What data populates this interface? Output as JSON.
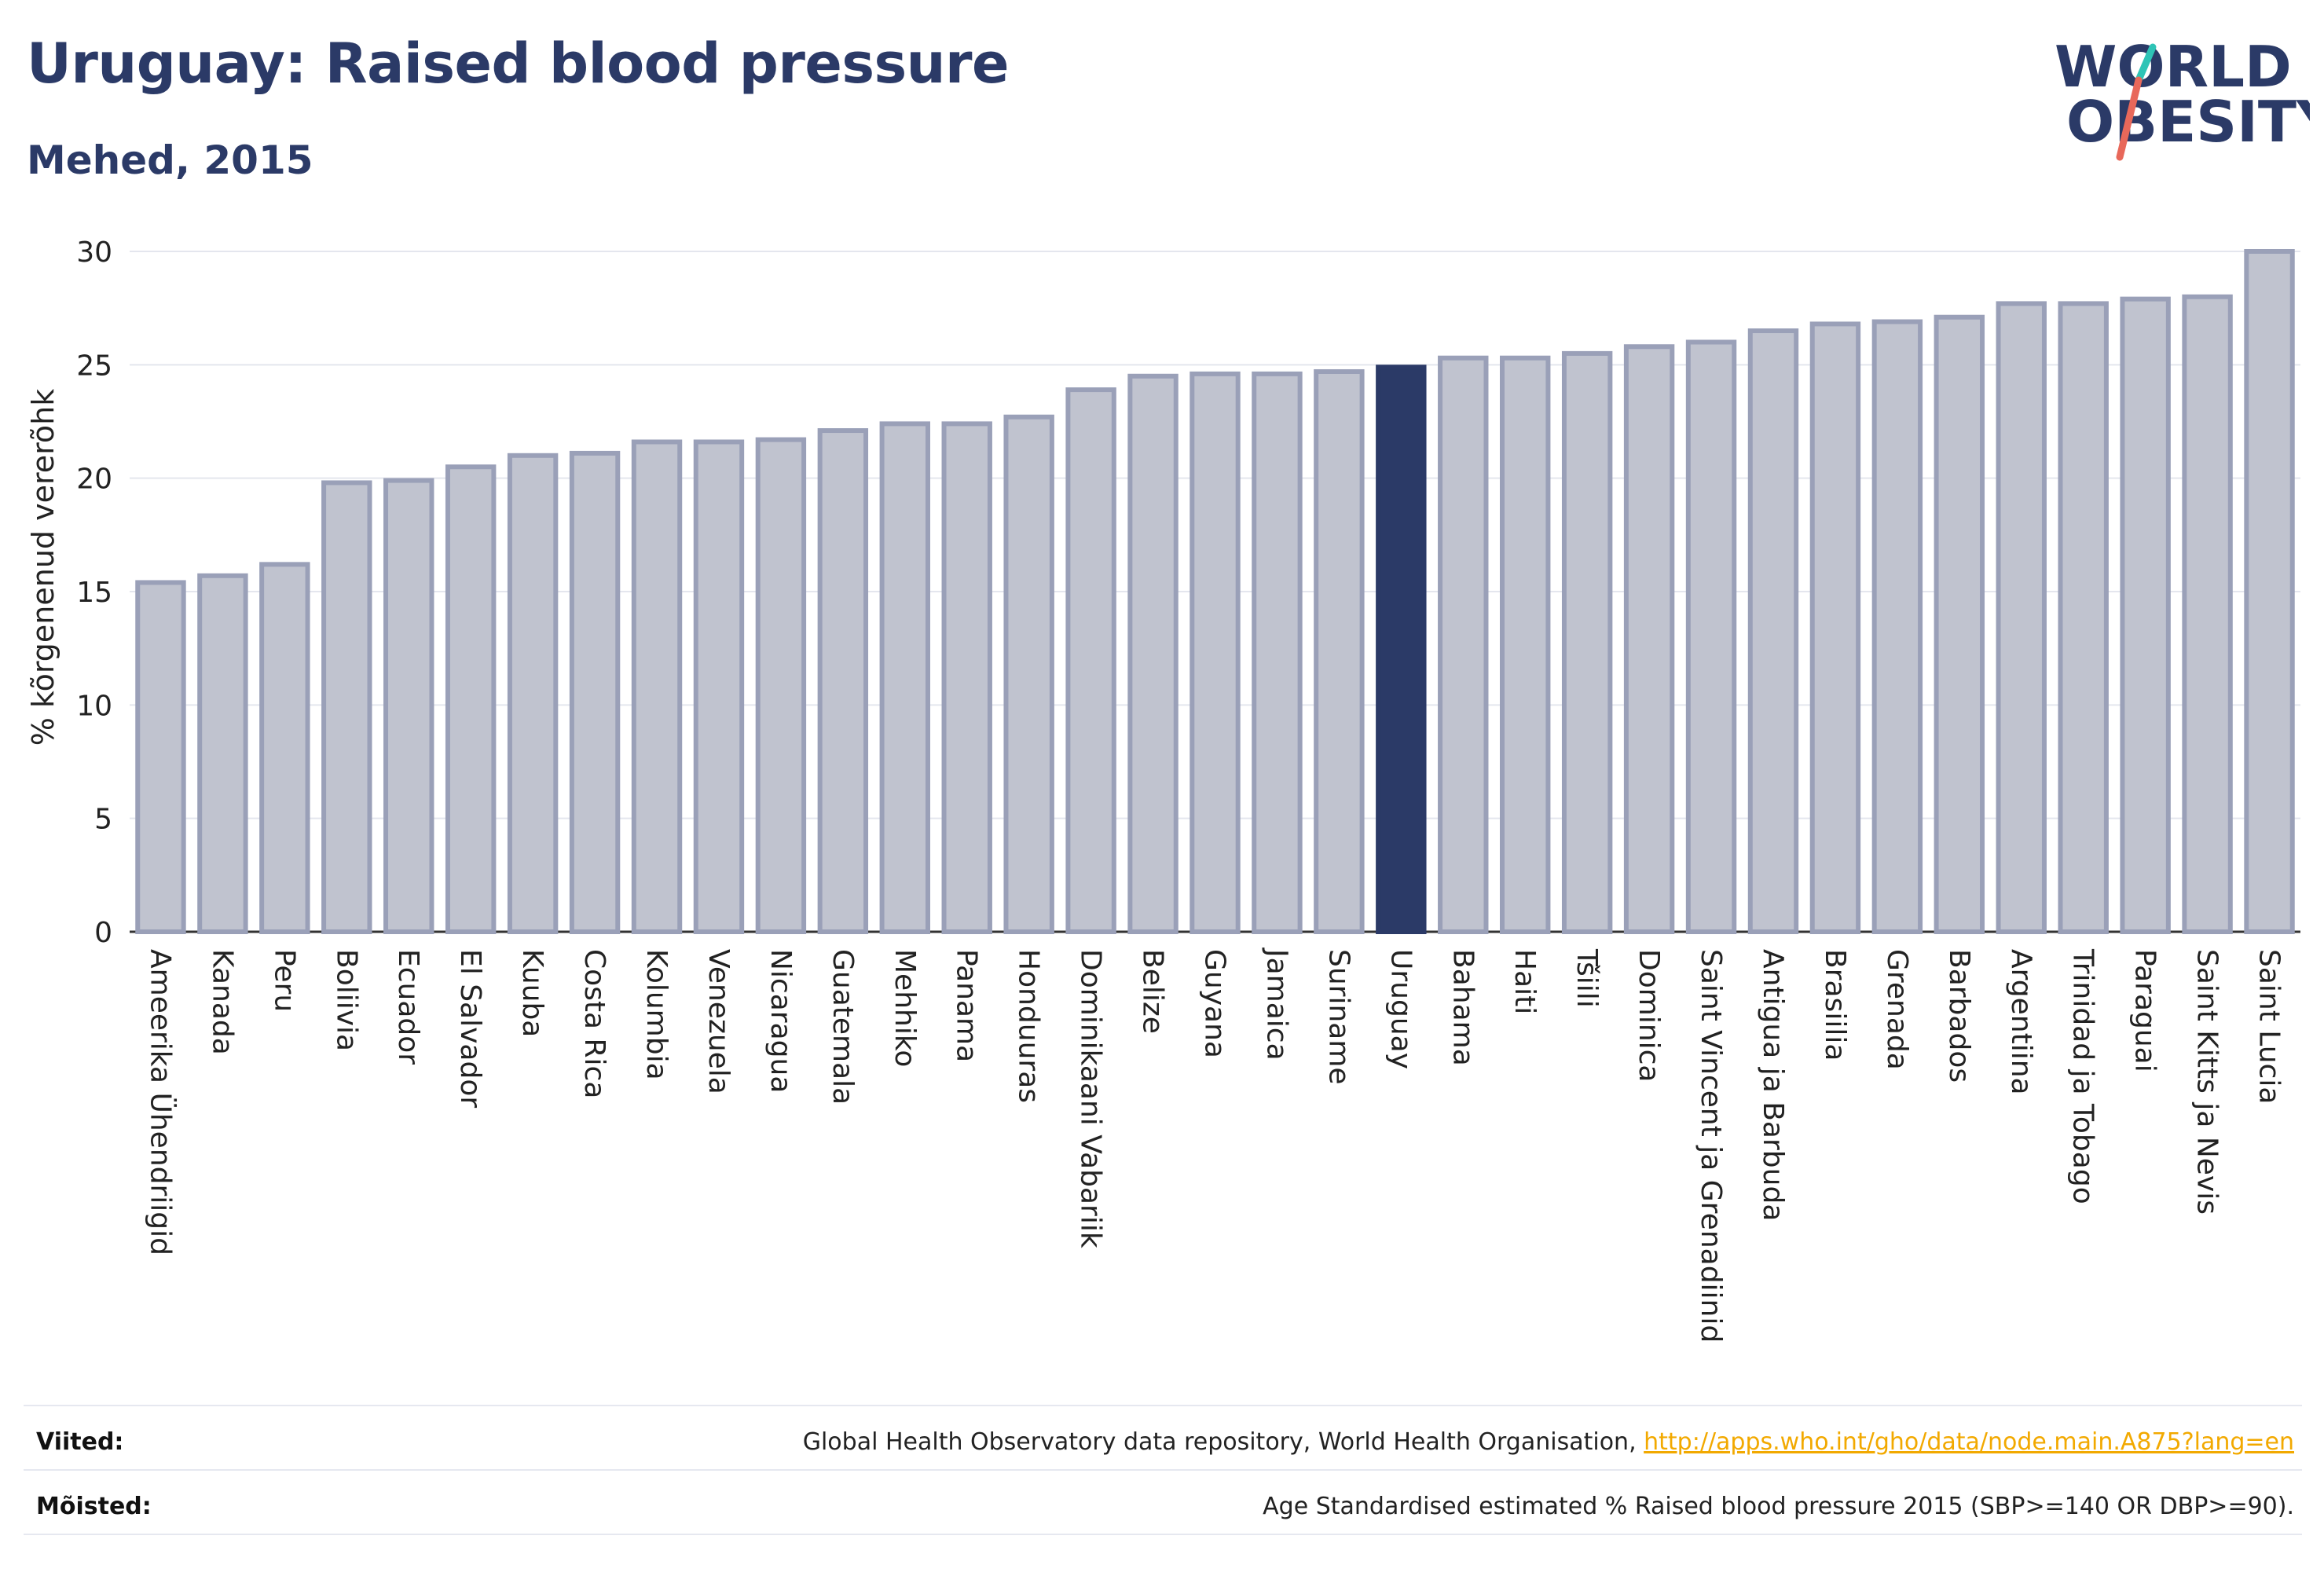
{
  "header": {
    "title": "Uruguay: Raised blood pressure",
    "subtitle": "Mehed, 2015"
  },
  "logo": {
    "line1": "WORLD",
    "line2": "OBESITY",
    "colors": {
      "text": "#2b3a67",
      "teal": "#2ec4b6",
      "coral": "#e8685a"
    }
  },
  "chart_data": {
    "type": "bar",
    "ylabel": "% kõrgenenud vererõhk",
    "xlabel": "",
    "ylim": [
      0,
      30
    ],
    "yticks": [
      0,
      5,
      10,
      15,
      20,
      25,
      30
    ],
    "grid": true,
    "highlight": "Uruguay",
    "colors": {
      "bar": "#c0c3cf",
      "bar_border": "#9aa0b8",
      "highlight": "#2b3a67"
    },
    "categories": [
      "Ameerika Ühendriigid",
      "Kanada",
      "Peru",
      "Boliivia",
      "Ecuador",
      "El Salvador",
      "Kuuba",
      "Costa Rica",
      "Kolumbia",
      "Venezuela",
      "Nicaragua",
      "Guatemala",
      "Mehhiko",
      "Panama",
      "Honduuras",
      "Dominikaani Vabariik",
      "Belize",
      "Guyana",
      "Jamaica",
      "Suriname",
      "Uruguay",
      "Bahama",
      "Haiti",
      "Tšiili",
      "Dominica",
      "Saint Vincent ja Grenadiinid",
      "Antigua ja Barbuda",
      "Brasiilia",
      "Grenada",
      "Barbados",
      "Argentiina",
      "Trinidad ja Tobago",
      "Paraguai",
      "Saint Kitts ja Nevis",
      "Saint Lucia"
    ],
    "values": [
      15.4,
      15.7,
      16.2,
      19.8,
      19.9,
      20.5,
      21.0,
      21.1,
      21.6,
      21.6,
      21.7,
      22.1,
      22.4,
      22.4,
      22.7,
      23.9,
      24.5,
      24.6,
      24.6,
      24.7,
      24.9,
      25.3,
      25.3,
      25.5,
      25.8,
      26.0,
      26.5,
      26.8,
      26.9,
      27.1,
      27.7,
      27.7,
      27.9,
      28.0,
      30.0
    ]
  },
  "footer": {
    "sources_label": "Viited:",
    "sources_text": "Global Health Observatory data repository, World Health Organisation, ",
    "sources_link": "http://apps.who.int/gho/data/node.main.A875?lang=en",
    "definitions_label": "Mõisted:",
    "definitions_text": "Age Standardised estimated % Raised blood pressure 2015 (SBP>=140 OR DBP>=90)."
  }
}
